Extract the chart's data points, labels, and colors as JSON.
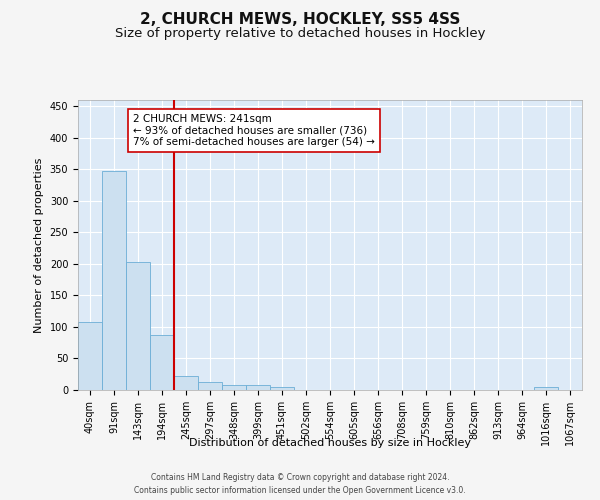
{
  "title1": "2, CHURCH MEWS, HOCKLEY, SS5 4SS",
  "title2": "Size of property relative to detached houses in Hockley",
  "xlabel": "Distribution of detached houses by size in Hockley",
  "ylabel": "Number of detached properties",
  "footer1": "Contains HM Land Registry data © Crown copyright and database right 2024.",
  "footer2": "Contains public sector information licensed under the Open Government Licence v3.0.",
  "bar_labels": [
    "40sqm",
    "91sqm",
    "143sqm",
    "194sqm",
    "245sqm",
    "297sqm",
    "348sqm",
    "399sqm",
    "451sqm",
    "502sqm",
    "554sqm",
    "605sqm",
    "656sqm",
    "708sqm",
    "759sqm",
    "810sqm",
    "862sqm",
    "913sqm",
    "964sqm",
    "1016sqm",
    "1067sqm"
  ],
  "bar_values": [
    108,
    348,
    203,
    88,
    22,
    13,
    8,
    8,
    5,
    0,
    0,
    0,
    0,
    0,
    0,
    0,
    0,
    0,
    0,
    4,
    0
  ],
  "bar_color": "#cce0f0",
  "bar_edge_color": "#6baed6",
  "vline_color": "#cc0000",
  "annotation_title": "2 CHURCH MEWS: 241sqm",
  "annotation_line1": "← 93% of detached houses are smaller (736)",
  "annotation_line2": "7% of semi-detached houses are larger (54) →",
  "annotation_box_color": "#ffffff",
  "annotation_box_edge": "#cc0000",
  "ylim": [
    0,
    460
  ],
  "yticks": [
    0,
    50,
    100,
    150,
    200,
    250,
    300,
    350,
    400,
    450
  ],
  "background_color": "#ddeaf7",
  "grid_color": "#ffffff",
  "fig_background": "#f5f5f5",
  "title_fontsize": 11,
  "subtitle_fontsize": 9.5,
  "axis_label_fontsize": 8,
  "tick_fontsize": 7,
  "annotation_fontsize": 7.5,
  "footer_fontsize": 5.5
}
